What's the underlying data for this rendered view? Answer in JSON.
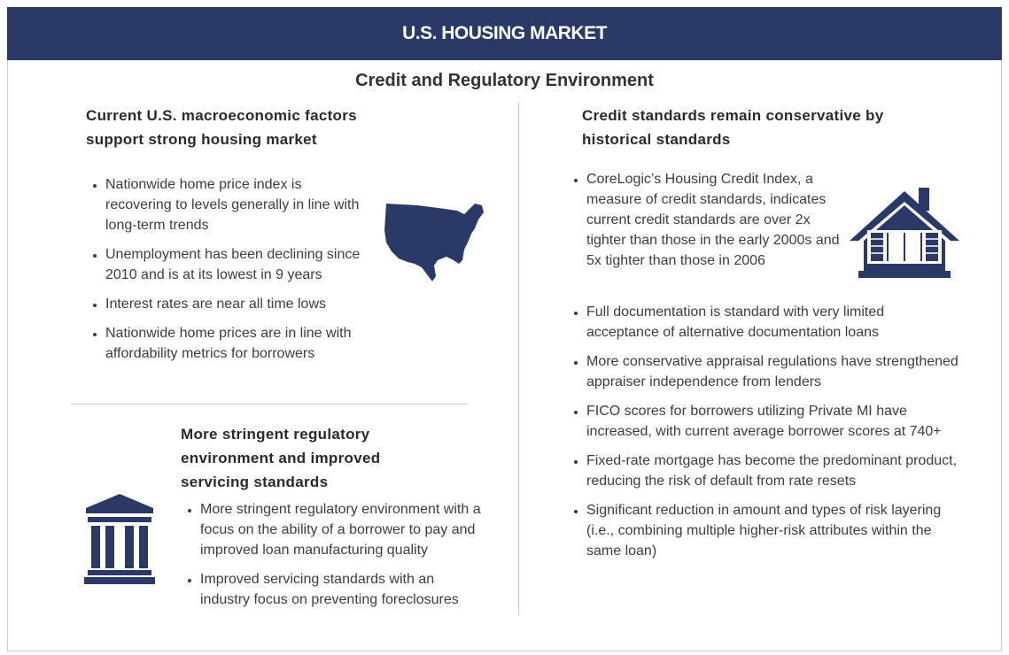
{
  "header": {
    "title": "U.S. HOUSING MARKET"
  },
  "subtitle": "Credit and Regulatory Environment",
  "sections": [
    {
      "heading": "Current U.S. macroeconomic factors support strong housing market",
      "bullets": [
        "Nationwide home price index is recovering to levels generally in line with long-term trends",
        "Unemployment has been declining since 2010 and is at its lowest in 9 years",
        "Interest rates are near all time lows",
        "Nationwide home prices are in line with affordability metrics for borrowers"
      ]
    },
    {
      "heading": "More stringent regulatory environment and improved servicing standards",
      "bullets": [
        "More stringent regulatory environment with a focus on the ability of a borrower to pay and improved loan manufacturing quality",
        "Improved servicing standards with an industry focus on preventing foreclosures"
      ]
    },
    {
      "heading": "Credit standards remain conservative by historical standards",
      "bullets": [
        "CoreLogic’s Housing Credit Index, a measure of credit standards, indicates current credit standards are over 2x tighter than those in the early 2000s and 5x tighter than those in 2006",
        "Full documentation is standard with very limited acceptance of alternative documentation loans",
        "More conservative appraisal regulations have strengthened appraiser independence from lenders",
        "FICO scores for borrowers utilizing Private MI have increased, with current average borrower scores at 740+",
        "Fixed-rate mortgage has become the predominant product, reducing the risk of default from rate resets",
        "Significant reduction in amount and types of risk layering (i.e., combining multiple higher-risk attributes within the same loan)"
      ]
    }
  ]
}
